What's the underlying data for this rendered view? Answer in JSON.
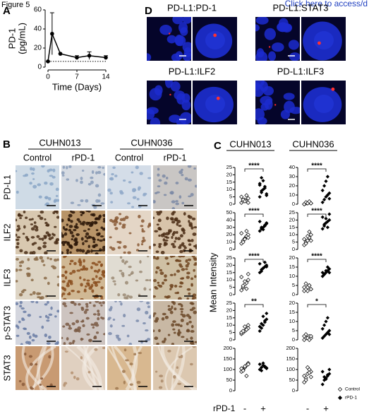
{
  "figure_label": "Figure 5",
  "link_text": "Click here to access/d",
  "panel_a": {
    "label": "A",
    "type": "line",
    "y_label_lines": [
      "PD-1",
      "(pg/mL)"
    ],
    "x_label": "Time (Days)",
    "x": [
      0,
      1,
      3,
      7,
      10,
      14
    ],
    "values": [
      6,
      35,
      14,
      10,
      12,
      10
    ],
    "errors": [
      0,
      22,
      0,
      2,
      4,
      2
    ],
    "baseline": 6,
    "xlim": [
      0,
      14
    ],
    "ylim": [
      0,
      60
    ],
    "xticks": [
      0,
      7,
      14
    ],
    "yticks": [
      0,
      20,
      40,
      60
    ],
    "color": "#000000"
  },
  "panel_b": {
    "label": "B",
    "groups": [
      "CUHN013",
      "CUHN036"
    ],
    "columns": [
      "Control",
      "rPD-1",
      "Control",
      "rPD-1"
    ],
    "rows": [
      "PD-L1",
      "ILF2",
      "ILF3",
      "p-STAT3",
      "STAT3"
    ]
  },
  "panel_c": {
    "label": "C",
    "groups": [
      "CUHN013",
      "CUHN036"
    ],
    "y_label": "Mean Intensity",
    "x_title": "rPD-1",
    "x_marks": [
      "-",
      "+"
    ],
    "legend": [
      "Control",
      "rPD-1"
    ],
    "plots": [
      [
        {
          "ylim": [
            0,
            25
          ],
          "yticks": [
            0,
            5,
            10,
            15,
            20,
            25
          ],
          "significance": "****",
          "control": [
            1,
            2,
            3,
            2,
            4,
            5,
            3,
            2,
            6,
            1
          ],
          "rpd1": [
            5,
            8,
            10,
            12,
            7,
            14,
            9,
            16,
            11,
            6,
            13,
            18
          ]
        },
        {
          "ylim": [
            0,
            50
          ],
          "yticks": [
            0,
            10,
            20,
            30,
            40,
            50
          ],
          "significance": "****",
          "control": [
            8,
            12,
            15,
            18,
            20,
            22,
            10,
            14,
            25,
            16
          ],
          "rpd1": [
            25,
            28,
            30,
            32,
            35,
            38,
            30,
            27,
            33,
            36
          ]
        },
        {
          "ylim": [
            0,
            25
          ],
          "yticks": [
            0,
            5,
            10,
            15,
            20,
            25
          ],
          "significance": "****",
          "control": [
            3,
            5,
            7,
            8,
            10,
            12,
            6,
            9,
            4,
            14
          ],
          "rpd1": [
            15,
            16,
            18,
            19,
            20,
            21,
            17,
            18,
            22,
            19
          ]
        },
        {
          "ylim": [
            0,
            25
          ],
          "yticks": [
            0,
            5,
            10,
            15,
            20,
            25
          ],
          "significance": "**",
          "control": [
            4,
            5,
            6,
            7,
            8,
            5,
            6,
            9,
            7,
            10
          ],
          "rpd1": [
            6,
            8,
            10,
            12,
            14,
            9,
            11,
            16,
            13,
            18
          ]
        },
        {
          "ylim": [
            0,
            200
          ],
          "yticks": [
            0,
            50,
            100,
            150,
            200
          ],
          "control": [
            90,
            100,
            110,
            120,
            130,
            105,
            95,
            115,
            70,
            125
          ],
          "rpd1": [
            100,
            110,
            120,
            115,
            105,
            125,
            95,
            130,
            112,
            108
          ]
        }
      ],
      [
        {
          "ylim": [
            0,
            40
          ],
          "yticks": [
            0,
            10,
            20,
            30,
            40
          ],
          "significance": "****",
          "control": [
            0,
            1,
            1,
            2,
            1,
            0,
            2,
            1,
            3,
            1
          ],
          "rpd1": [
            2,
            5,
            8,
            10,
            12,
            15,
            20,
            25,
            30,
            6
          ]
        },
        {
          "ylim": [
            0,
            25
          ],
          "yticks": [
            0,
            5,
            10,
            15,
            20,
            25
          ],
          "significance": "****",
          "control": [
            3,
            5,
            6,
            8,
            10,
            7,
            4,
            9,
            12,
            6
          ],
          "rpd1": [
            14,
            16,
            18,
            19,
            20,
            22,
            17,
            21,
            15,
            24
          ]
        },
        {
          "ylim": [
            0,
            20
          ],
          "yticks": [
            0,
            5,
            10,
            15,
            20
          ],
          "significance": "****",
          "control": [
            2,
            3,
            4,
            5,
            3,
            4,
            6,
            2,
            5,
            3
          ],
          "rpd1": [
            10,
            11,
            12,
            13,
            14,
            12,
            11,
            13,
            15,
            12
          ]
        },
        {
          "ylim": [
            0,
            20
          ],
          "yticks": [
            0,
            5,
            10,
            15,
            20
          ],
          "significance": "*",
          "control": [
            0,
            1,
            1,
            2,
            1,
            2,
            3,
            1,
            0,
            2
          ],
          "rpd1": [
            1,
            2,
            3,
            4,
            5,
            6,
            8,
            10,
            12,
            3
          ]
        },
        {
          "ylim": [
            0,
            200
          ],
          "yticks": [
            0,
            50,
            100,
            150,
            200
          ],
          "control": [
            40,
            60,
            80,
            100,
            90,
            70,
            50,
            110,
            85,
            65
          ],
          "rpd1": [
            30,
            50,
            60,
            70,
            80,
            90,
            65,
            55,
            75,
            100
          ]
        }
      ]
    ]
  },
  "panel_d": {
    "label": "D",
    "titles": [
      "PD-L1:PD-1",
      "PD-L1:STAT3",
      "PD-L1:ILF2",
      "PD-L1:ILF3"
    ]
  }
}
